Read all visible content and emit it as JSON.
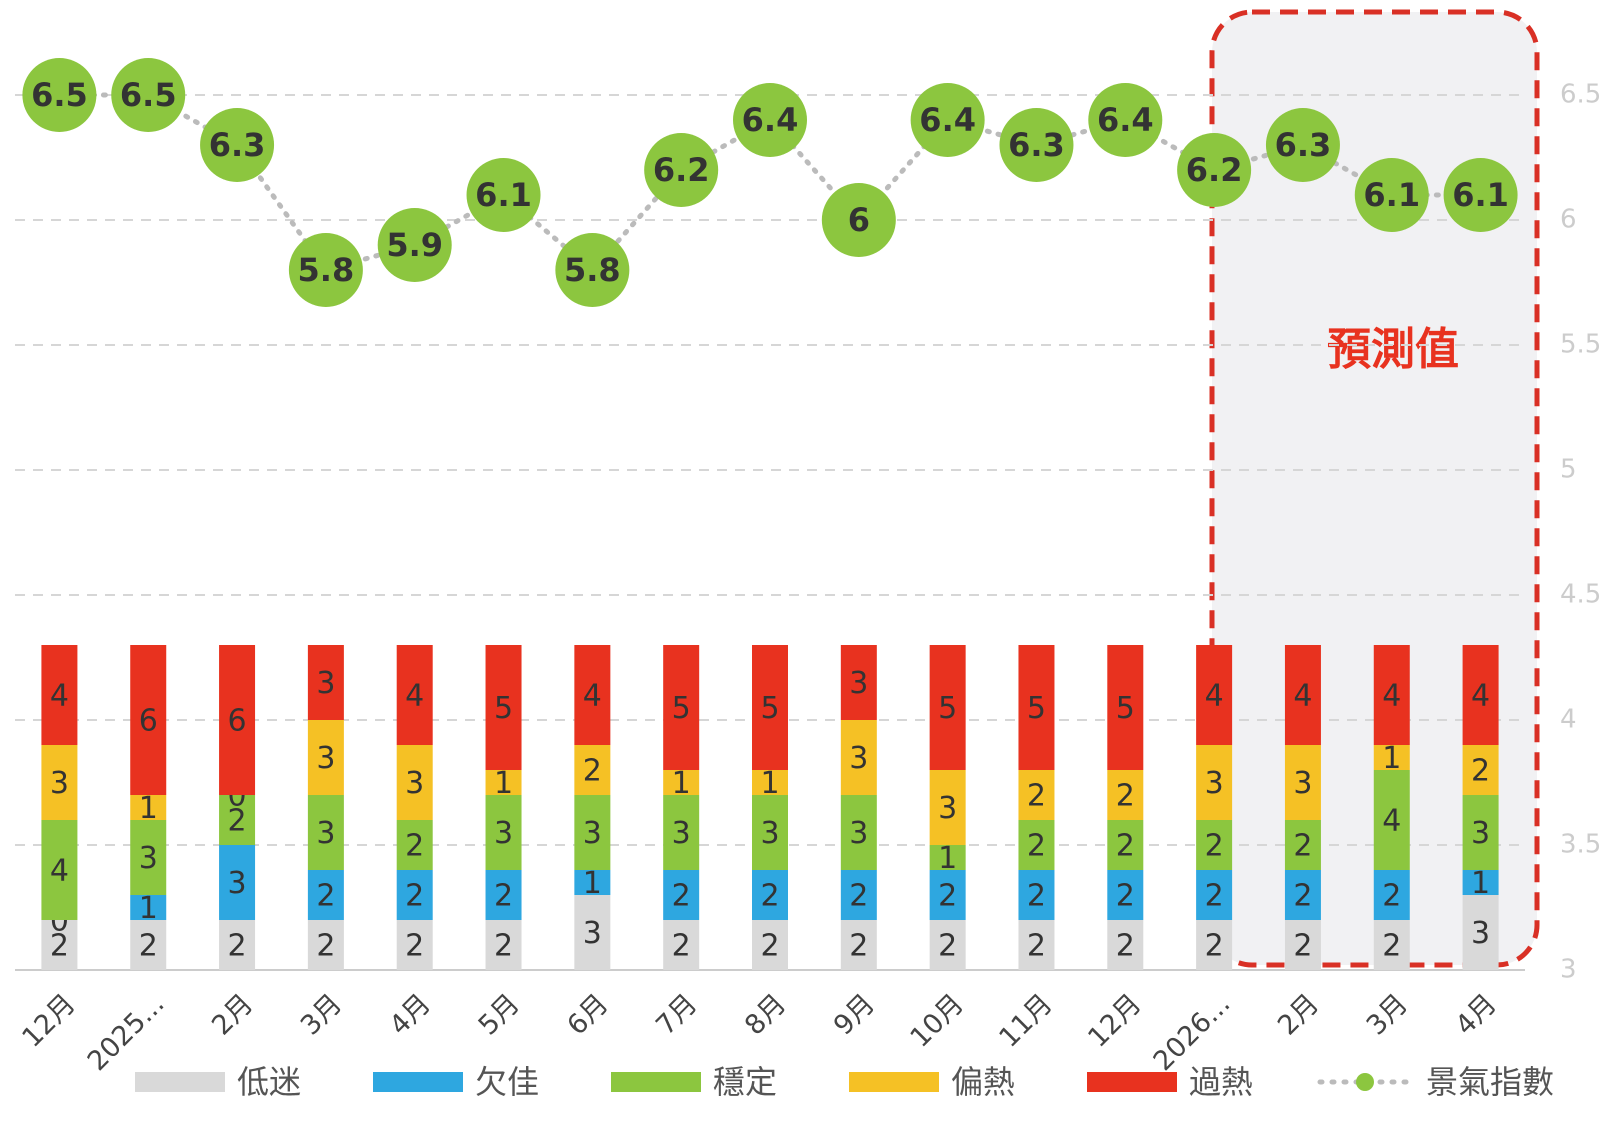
{
  "chart_data": {
    "type": "bar",
    "stacked": true,
    "grid": true,
    "legend": "bottom",
    "categories": [
      "12月",
      "2025...",
      "2月",
      "3月",
      "4月",
      "5月",
      "6月",
      "7月",
      "8月",
      "9月",
      "10月",
      "11月",
      "12月",
      "2026...",
      "2月",
      "3月",
      "4月"
    ],
    "ylim": [
      0,
      36
    ],
    "y2lim": [
      3,
      6.6
    ],
    "y2ticks": [
      3,
      3.5,
      4,
      4.5,
      5,
      5.5,
      6,
      6.5
    ],
    "annotation": "預測值",
    "series": [
      {
        "name": "低迷",
        "color": "#d9d9d9",
        "values": [
          2,
          2,
          2,
          2,
          2,
          2,
          3,
          2,
          2,
          2,
          2,
          2,
          2,
          2,
          2,
          2,
          3
        ]
      },
      {
        "name": "欠佳",
        "color": "#2ea7e0",
        "values": [
          0,
          1,
          3,
          2,
          2,
          2,
          1,
          2,
          2,
          2,
          2,
          2,
          2,
          2,
          2,
          2,
          1
        ]
      },
      {
        "name": "穩定",
        "color": "#8cc63f",
        "values": [
          4,
          3,
          2,
          3,
          2,
          3,
          3,
          3,
          3,
          3,
          1,
          2,
          2,
          2,
          2,
          4,
          3
        ]
      },
      {
        "name": "偏熱",
        "color": "#f5c125",
        "values": [
          3,
          1,
          0,
          3,
          3,
          1,
          2,
          1,
          1,
          3,
          3,
          2,
          2,
          3,
          3,
          1,
          2
        ]
      },
      {
        "name": "過熱",
        "color": "#e8321f",
        "values": [
          4,
          6,
          6,
          3,
          4,
          5,
          4,
          5,
          5,
          3,
          5,
          5,
          5,
          4,
          4,
          4,
          4
        ]
      },
      {
        "name": "景氣指數",
        "type": "line",
        "axis": "y2",
        "color": "#8cc63f",
        "values": [
          6.5,
          6.5,
          6.3,
          5.8,
          5.9,
          6.1,
          5.8,
          6.2,
          6.4,
          6.0,
          6.4,
          6.3,
          6.4,
          6.2,
          6.3,
          6.1,
          6.1
        ]
      }
    ]
  }
}
